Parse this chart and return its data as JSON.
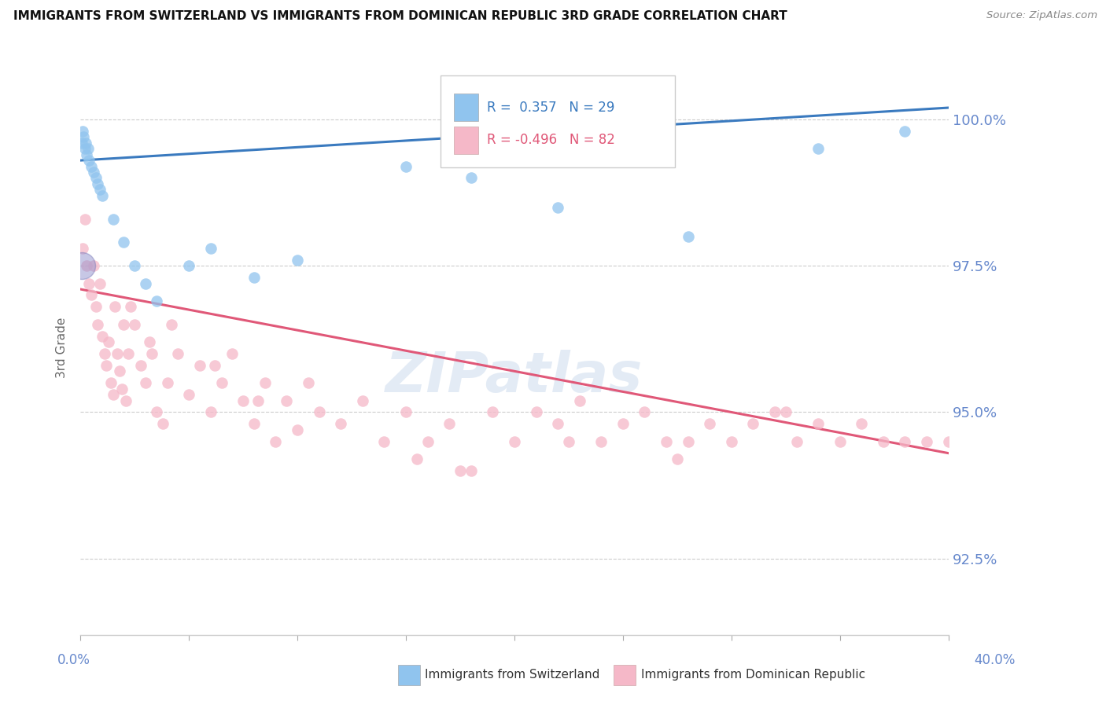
{
  "title": "IMMIGRANTS FROM SWITZERLAND VS IMMIGRANTS FROM DOMINICAN REPUBLIC 3RD GRADE CORRELATION CHART",
  "source": "Source: ZipAtlas.com",
  "ylabel": "3rd Grade",
  "ytick_labels": [
    "92.5%",
    "95.0%",
    "97.5%",
    "100.0%"
  ],
  "ytick_values": [
    92.5,
    95.0,
    97.5,
    100.0
  ],
  "xmin": 0.0,
  "xmax": 40.0,
  "ymin": 91.2,
  "ymax": 101.0,
  "legend_switzerland": "Immigrants from Switzerland",
  "legend_dominican": "Immigrants from Dominican Republic",
  "R_switzerland": 0.357,
  "N_switzerland": 29,
  "R_dominican": -0.496,
  "N_dominican": 82,
  "color_switzerland": "#90c4ee",
  "color_dominican": "#f5b8c8",
  "color_line_switzerland": "#3a7abf",
  "color_line_dominican": "#e05878",
  "watermark_color": "#c8d8ec",
  "axis_color": "#6688cc",
  "swiss_line_y0": 99.3,
  "swiss_line_y1": 100.2,
  "dom_line_y0": 97.1,
  "dom_line_y1": 94.3,
  "swiss_x": [
    0.05,
    0.1,
    0.15,
    0.2,
    0.25,
    0.3,
    0.35,
    0.4,
    0.5,
    0.6,
    0.7,
    0.8,
    0.9,
    1.0,
    1.5,
    2.0,
    2.5,
    3.0,
    3.5,
    5.0,
    6.0,
    8.0,
    10.0,
    15.0,
    18.0,
    22.0,
    28.0,
    34.0,
    38.0
  ],
  "swiss_y": [
    99.6,
    99.8,
    99.7,
    99.5,
    99.6,
    99.4,
    99.5,
    99.3,
    99.2,
    99.1,
    99.0,
    98.9,
    98.8,
    98.7,
    98.3,
    97.9,
    97.5,
    97.2,
    96.9,
    97.5,
    97.8,
    97.3,
    97.6,
    99.2,
    99.0,
    98.5,
    98.0,
    99.5,
    99.8
  ],
  "swiss_sizes": [
    120,
    120,
    120,
    120,
    120,
    120,
    120,
    120,
    100,
    100,
    100,
    100,
    90,
    90,
    90,
    90,
    80,
    80,
    80,
    80,
    80,
    80,
    80,
    80,
    80,
    80,
    80,
    80,
    80
  ],
  "dom_x": [
    0.1,
    0.2,
    0.3,
    0.4,
    0.5,
    0.6,
    0.7,
    0.8,
    0.9,
    1.0,
    1.1,
    1.2,
    1.3,
    1.4,
    1.5,
    1.6,
    1.7,
    1.8,
    1.9,
    2.0,
    2.1,
    2.2,
    2.5,
    2.8,
    3.0,
    3.2,
    3.5,
    3.8,
    4.0,
    4.5,
    5.0,
    5.5,
    6.0,
    6.5,
    7.0,
    7.5,
    8.0,
    8.5,
    9.0,
    9.5,
    10.0,
    11.0,
    12.0,
    13.0,
    14.0,
    15.0,
    16.0,
    17.0,
    18.0,
    19.0,
    20.0,
    21.0,
    22.0,
    23.0,
    24.0,
    25.0,
    26.0,
    27.0,
    28.0,
    29.0,
    30.0,
    31.0,
    32.0,
    33.0,
    34.0,
    35.0,
    36.0,
    37.0,
    38.0,
    39.0,
    40.0,
    15.5,
    10.5,
    17.5,
    22.5,
    27.5,
    32.5,
    4.2,
    6.2,
    8.2,
    2.3,
    3.3
  ],
  "dom_y": [
    97.8,
    98.3,
    97.5,
    97.2,
    97.0,
    97.5,
    96.8,
    96.5,
    97.2,
    96.3,
    96.0,
    95.8,
    96.2,
    95.5,
    95.3,
    96.8,
    96.0,
    95.7,
    95.4,
    96.5,
    95.2,
    96.0,
    96.5,
    95.8,
    95.5,
    96.2,
    95.0,
    94.8,
    95.5,
    96.0,
    95.3,
    95.8,
    95.0,
    95.5,
    96.0,
    95.2,
    94.8,
    95.5,
    94.5,
    95.2,
    94.7,
    95.0,
    94.8,
    95.2,
    94.5,
    95.0,
    94.5,
    94.8,
    94.0,
    95.0,
    94.5,
    95.0,
    94.8,
    95.2,
    94.5,
    94.8,
    95.0,
    94.5,
    94.5,
    94.8,
    94.5,
    94.8,
    95.0,
    94.5,
    94.8,
    94.5,
    94.8,
    94.5,
    94.5,
    94.5,
    94.5,
    94.2,
    95.5,
    94.0,
    94.5,
    94.2,
    95.0,
    96.5,
    95.8,
    95.2,
    96.8,
    96.0
  ],
  "dom_special_x": [
    0.05
  ],
  "dom_special_y": [
    97.5
  ],
  "dom_special_size": [
    600
  ]
}
